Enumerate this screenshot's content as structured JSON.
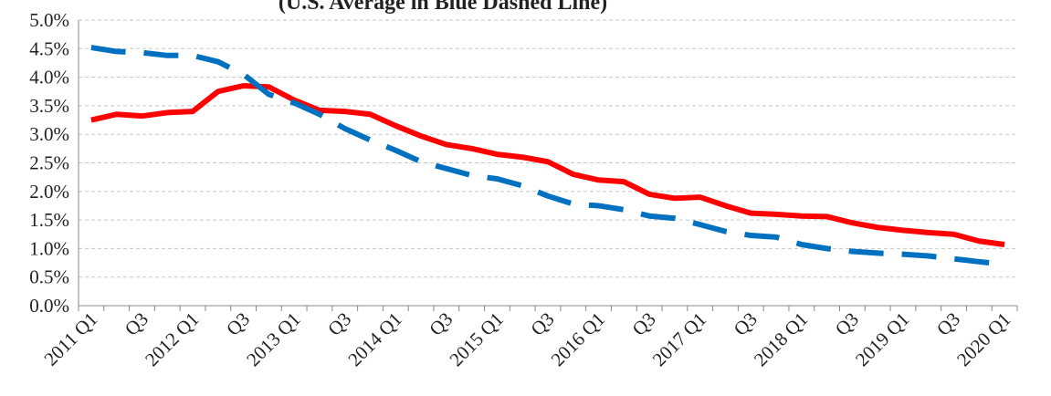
{
  "chart_data": {
    "type": "line",
    "title": "(U.S. Average in Blue Dashed Line)",
    "categories": [
      "2011 Q1",
      null,
      "Q3",
      null,
      "2012 Q1",
      null,
      "Q3",
      null,
      "2013 Q1",
      null,
      "Q3",
      null,
      "2014 Q1",
      null,
      "Q3",
      null,
      "2015 Q1",
      null,
      "Q3",
      null,
      "2016 Q1",
      null,
      "Q3",
      null,
      "2017 Q1",
      null,
      "Q3",
      null,
      "2018 Q1",
      null,
      "Q3",
      null,
      "2019 Q1",
      null,
      "Q3",
      null,
      "2020 Q1"
    ],
    "series": [
      {
        "color": "#ff0000",
        "dashed": false,
        "values": [
          3.25,
          3.35,
          3.32,
          3.38,
          3.4,
          3.75,
          3.85,
          3.83,
          3.6,
          3.42,
          3.4,
          3.35,
          3.15,
          2.97,
          2.82,
          2.75,
          2.65,
          2.6,
          2.52,
          2.3,
          2.2,
          2.17,
          1.95,
          1.88,
          1.9,
          1.75,
          1.62,
          1.6,
          1.57,
          1.56,
          1.45,
          1.37,
          1.32,
          1.28,
          1.25,
          1.13,
          1.07
        ]
      },
      {
        "color": "#0070c0",
        "dashed": true,
        "values": [
          4.52,
          4.45,
          4.43,
          4.38,
          4.38,
          4.27,
          4.05,
          3.7,
          3.55,
          3.35,
          3.1,
          2.9,
          2.72,
          2.52,
          2.4,
          2.28,
          2.22,
          2.1,
          1.92,
          1.78,
          1.75,
          1.68,
          1.57,
          1.53,
          1.42,
          1.3,
          1.23,
          1.2,
          1.07,
          1.0,
          0.95,
          0.92,
          0.9,
          0.87,
          0.82,
          0.77,
          0.72
        ]
      }
    ],
    "ylim": [
      0,
      5
    ],
    "yticks": [
      {
        "value": 0,
        "label": "0.0%"
      },
      {
        "value": 0.5,
        "label": "0.5%"
      },
      {
        "value": 1,
        "label": "1.0%"
      },
      {
        "value": 1.5,
        "label": "1.5%"
      },
      {
        "value": 2,
        "label": "2.0%"
      },
      {
        "value": 2.5,
        "label": "2.5%"
      },
      {
        "value": 3,
        "label": "3.0%"
      },
      {
        "value": 3.5,
        "label": "3.5%"
      },
      {
        "value": 4,
        "label": "4.0%"
      },
      {
        "value": 4.5,
        "label": "4.5%"
      },
      {
        "value": 5,
        "label": "5.0%"
      }
    ],
    "grid": true
  }
}
